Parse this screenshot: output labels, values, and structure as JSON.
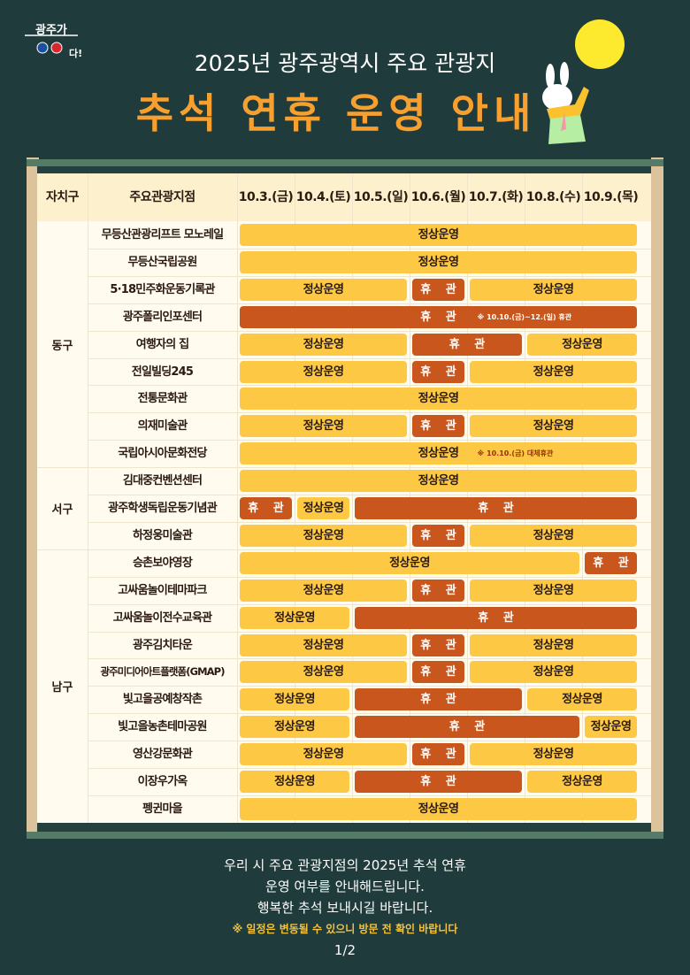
{
  "header": {
    "logo_text": "광주가 좋다!",
    "subtitle": "2025년 광주광역시 주요 관광지",
    "title": "추석 연휴 운영 안내"
  },
  "colors": {
    "background": "#1f3b3b",
    "open": "#fdc843",
    "closed": "#c9561d",
    "title": "#f7a030",
    "warning": "#f5c23a"
  },
  "table": {
    "headers": {
      "district": "자치구",
      "place": "주요관광지점"
    },
    "dates": [
      "10.3.(금)",
      "10.4.(토)",
      "10.5.(일)",
      "10.6.(월)",
      "10.7.(화)",
      "10.8.(수)",
      "10.9.(목)"
    ],
    "labels": {
      "open": "정상운영",
      "closed": "휴 관"
    },
    "districts": [
      {
        "name": "동구",
        "rows": [
          0,
          8
        ]
      },
      {
        "name": "서구",
        "rows": [
          9,
          11
        ]
      },
      {
        "name": "남구",
        "rows": [
          12,
          21
        ]
      }
    ],
    "rows": [
      {
        "place": "무등산관광리프트 모노레일",
        "segments": [
          {
            "from": 0,
            "to": 6,
            "status": "open"
          }
        ]
      },
      {
        "place": "무등산국립공원",
        "segments": [
          {
            "from": 0,
            "to": 6,
            "status": "open"
          }
        ]
      },
      {
        "place": "5·18민주화운동기록관",
        "segments": [
          {
            "from": 0,
            "to": 2,
            "status": "open"
          },
          {
            "from": 3,
            "to": 3,
            "status": "closed"
          },
          {
            "from": 4,
            "to": 6,
            "status": "open"
          }
        ]
      },
      {
        "place": "광주폴리인포센터",
        "segments": [
          {
            "from": 0,
            "to": 6,
            "status": "closed",
            "note": "※ 10.10.(금)~12.(일) 휴관"
          }
        ]
      },
      {
        "place": "여행자의 집",
        "segments": [
          {
            "from": 0,
            "to": 2,
            "status": "open"
          },
          {
            "from": 3,
            "to": 4,
            "status": "closed"
          },
          {
            "from": 5,
            "to": 6,
            "status": "open"
          }
        ]
      },
      {
        "place": "전일빌딩245",
        "segments": [
          {
            "from": 0,
            "to": 2,
            "status": "open"
          },
          {
            "from": 3,
            "to": 3,
            "status": "closed"
          },
          {
            "from": 4,
            "to": 6,
            "status": "open"
          }
        ]
      },
      {
        "place": "전통문화관",
        "segments": [
          {
            "from": 0,
            "to": 6,
            "status": "open"
          }
        ]
      },
      {
        "place": "의재미술관",
        "segments": [
          {
            "from": 0,
            "to": 2,
            "status": "open"
          },
          {
            "from": 3,
            "to": 3,
            "status": "closed"
          },
          {
            "from": 4,
            "to": 6,
            "status": "open"
          }
        ]
      },
      {
        "place": "국립아시아문화전당",
        "segments": [
          {
            "from": 0,
            "to": 6,
            "status": "open",
            "note": "※ 10.10.(금) 대체휴관"
          }
        ]
      },
      {
        "place": "김대중컨벤션센터",
        "segments": [
          {
            "from": 0,
            "to": 6,
            "status": "open"
          }
        ]
      },
      {
        "place": "광주학생독립운동기념관",
        "segments": [
          {
            "from": 0,
            "to": 0,
            "status": "closed"
          },
          {
            "from": 1,
            "to": 1,
            "status": "open"
          },
          {
            "from": 2,
            "to": 6,
            "status": "closed"
          }
        ]
      },
      {
        "place": "하정웅미술관",
        "segments": [
          {
            "from": 0,
            "to": 2,
            "status": "open"
          },
          {
            "from": 3,
            "to": 3,
            "status": "closed"
          },
          {
            "from": 4,
            "to": 6,
            "status": "open"
          }
        ]
      },
      {
        "place": "승촌보야영장",
        "segments": [
          {
            "from": 0,
            "to": 5,
            "status": "open"
          },
          {
            "from": 6,
            "to": 6,
            "status": "closed"
          }
        ]
      },
      {
        "place": "고싸움놀이테마파크",
        "segments": [
          {
            "from": 0,
            "to": 2,
            "status": "open"
          },
          {
            "from": 3,
            "to": 3,
            "status": "closed"
          },
          {
            "from": 4,
            "to": 6,
            "status": "open"
          }
        ]
      },
      {
        "place": "고싸움놀이전수교육관",
        "segments": [
          {
            "from": 0,
            "to": 1,
            "status": "open"
          },
          {
            "from": 2,
            "to": 6,
            "status": "closed"
          }
        ]
      },
      {
        "place": "광주김치타운",
        "segments": [
          {
            "from": 0,
            "to": 2,
            "status": "open"
          },
          {
            "from": 3,
            "to": 3,
            "status": "closed"
          },
          {
            "from": 4,
            "to": 6,
            "status": "open"
          }
        ]
      },
      {
        "place": "광주미디어아트플랫폼(GMAP)",
        "segments": [
          {
            "from": 0,
            "to": 2,
            "status": "open"
          },
          {
            "from": 3,
            "to": 3,
            "status": "closed"
          },
          {
            "from": 4,
            "to": 6,
            "status": "open"
          }
        ]
      },
      {
        "place": "빛고을공예창작촌",
        "segments": [
          {
            "from": 0,
            "to": 1,
            "status": "open"
          },
          {
            "from": 2,
            "to": 4,
            "status": "closed"
          },
          {
            "from": 5,
            "to": 6,
            "status": "open"
          }
        ]
      },
      {
        "place": "빛고을농촌테마공원",
        "segments": [
          {
            "from": 0,
            "to": 1,
            "status": "open"
          },
          {
            "from": 2,
            "to": 5,
            "status": "closed"
          },
          {
            "from": 6,
            "to": 6,
            "status": "open"
          }
        ]
      },
      {
        "place": "영산강문화관",
        "segments": [
          {
            "from": 0,
            "to": 2,
            "status": "open"
          },
          {
            "from": 3,
            "to": 3,
            "status": "closed"
          },
          {
            "from": 4,
            "to": 6,
            "status": "open"
          }
        ]
      },
      {
        "place": "이장우가옥",
        "segments": [
          {
            "from": 0,
            "to": 1,
            "status": "open"
          },
          {
            "from": 2,
            "to": 4,
            "status": "closed"
          },
          {
            "from": 5,
            "to": 6,
            "status": "open"
          }
        ]
      },
      {
        "place": "펭귄마을",
        "segments": [
          {
            "from": 0,
            "to": 6,
            "status": "open"
          }
        ]
      }
    ]
  },
  "footer": {
    "line1": "우리 시 주요 관광지점의 2025년 추석 연휴",
    "line2": "운영 여부를 안내해드립니다.",
    "line3": "행복한 추석 보내시길 바랍니다.",
    "warning": "※ 일정은 변동될 수 있으니 방문 전 확인 바랍니다",
    "page": "1/2"
  }
}
